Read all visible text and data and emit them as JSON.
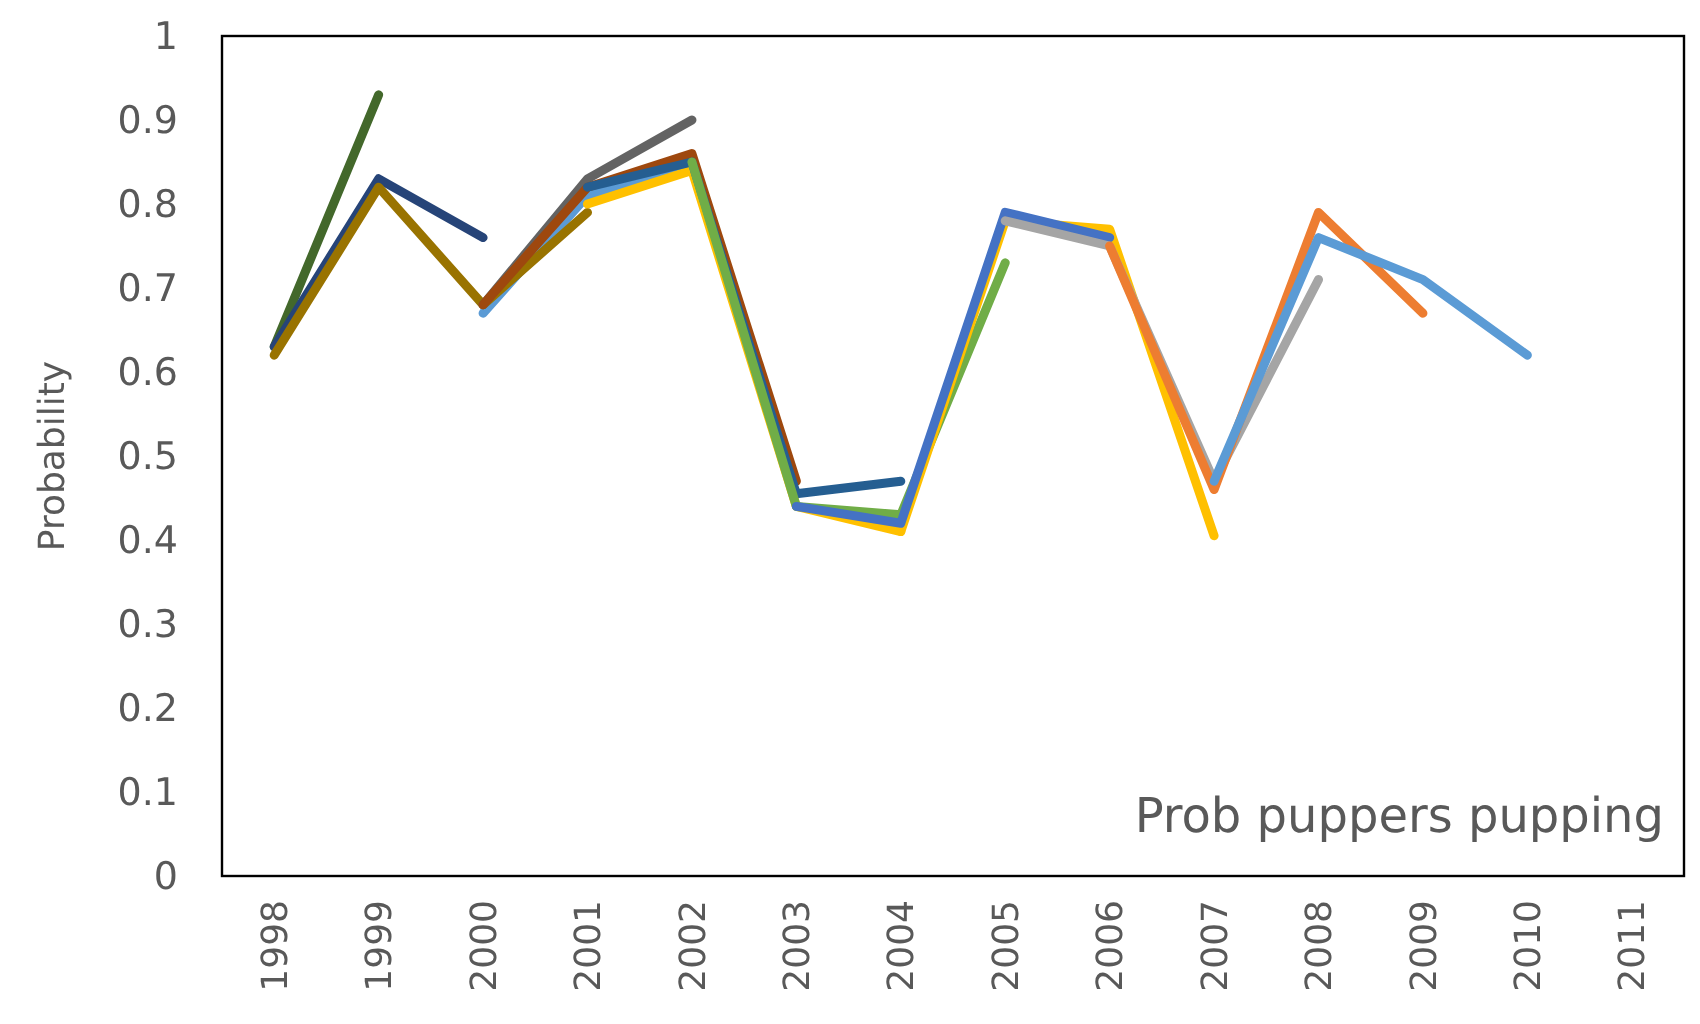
{
  "chart_data": {
    "type": "line",
    "ylabel": "Probability",
    "annotations": [
      "Prob puppers pupping"
    ],
    "categories": [
      "1998",
      "1999",
      "2000",
      "2001",
      "2002",
      "2003",
      "2004",
      "2005",
      "2006",
      "2007",
      "2008",
      "2009",
      "2010",
      "2011"
    ],
    "ylim": [
      0,
      1
    ],
    "yticks": [
      0,
      0.1,
      0.2,
      0.3,
      0.4,
      0.5,
      0.6,
      0.7,
      0.8,
      0.9,
      1
    ],
    "grid": false,
    "marker": "none",
    "line_style": "solid",
    "series": [
      {
        "color": "#43682b",
        "values": [
          0.63,
          0.93,
          null,
          null,
          null,
          null,
          null,
          null,
          null,
          null,
          null,
          null,
          null,
          null
        ]
      },
      {
        "color": "#264478",
        "values": [
          0.63,
          0.83,
          0.76,
          null,
          null,
          null,
          null,
          null,
          null,
          null,
          null,
          null,
          null,
          null
        ]
      },
      {
        "color": "#5b9bd5",
        "values": [
          null,
          null,
          0.67,
          0.81,
          0.84,
          null,
          null,
          null,
          null,
          null,
          null,
          null,
          null,
          null
        ]
      },
      {
        "color": "#997300",
        "values": [
          0.62,
          0.82,
          0.68,
          0.79,
          null,
          null,
          null,
          null,
          null,
          null,
          null,
          null,
          null,
          null
        ]
      },
      {
        "color": "#636363",
        "values": [
          null,
          null,
          0.68,
          0.83,
          0.9,
          null,
          null,
          null,
          null,
          null,
          null,
          null,
          null,
          null
        ]
      },
      {
        "color": "#ffc000",
        "values": [
          null,
          null,
          null,
          0.8,
          0.84,
          0.44,
          0.41,
          null,
          null,
          null,
          null,
          null,
          null,
          null
        ]
      },
      {
        "color": "#9e480e",
        "values": [
          null,
          null,
          0.68,
          0.82,
          0.86,
          0.47,
          null,
          null,
          null,
          null,
          null,
          null,
          null,
          null
        ]
      },
      {
        "color": "#255e91",
        "values": [
          null,
          null,
          null,
          0.82,
          0.85,
          0.455,
          0.47,
          null,
          null,
          null,
          null,
          null,
          null,
          null
        ]
      },
      {
        "color": "#70ad47",
        "values": [
          null,
          null,
          null,
          null,
          0.85,
          0.44,
          0.43,
          0.73,
          null,
          null,
          null,
          null,
          null,
          null
        ]
      },
      {
        "color": "#ffc000",
        "values": [
          null,
          null,
          null,
          null,
          null,
          null,
          0.41,
          0.78,
          0.77,
          0.405,
          null,
          null,
          null,
          null
        ]
      },
      {
        "color": "#4472c4",
        "values": [
          null,
          null,
          null,
          null,
          null,
          0.44,
          0.42,
          0.79,
          0.76,
          null,
          null,
          null,
          null,
          null
        ]
      },
      {
        "color": "#a5a5a5",
        "values": [
          null,
          null,
          null,
          null,
          null,
          null,
          null,
          0.78,
          0.75,
          0.47,
          0.71,
          null,
          null,
          null
        ]
      },
      {
        "color": "#ed7d31",
        "values": [
          null,
          null,
          null,
          null,
          null,
          null,
          null,
          null,
          0.75,
          0.46,
          0.79,
          0.67,
          null,
          null
        ]
      },
      {
        "color": "#5b9bd5",
        "values": [
          null,
          null,
          null,
          null,
          null,
          null,
          null,
          null,
          null,
          0.47,
          0.76,
          0.71,
          0.62,
          null
        ]
      }
    ]
  }
}
